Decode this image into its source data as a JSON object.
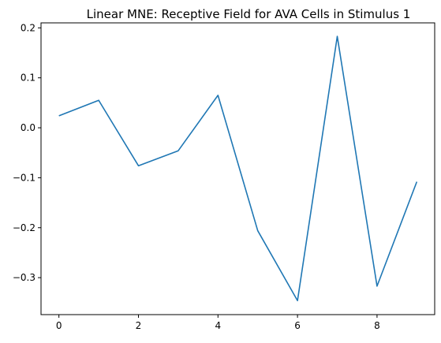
{
  "chart_data": {
    "type": "line",
    "title": "Linear MNE: Receptive Field for AVA Cells in Stimulus 1",
    "xlabel": "",
    "ylabel": "",
    "xlim": [
      -0.45,
      9.45
    ],
    "ylim": [
      -0.374,
      0.21
    ],
    "x_ticks": [
      0,
      2,
      4,
      6,
      8
    ],
    "y_ticks": [
      0.2,
      0.1,
      0.0,
      -0.1,
      -0.2,
      -0.3
    ],
    "x_tick_labels": [
      "0",
      "2",
      "4",
      "6",
      "8"
    ],
    "y_tick_labels": [
      "0.2",
      "0.1",
      "0.0",
      "−0.1",
      "−0.2",
      "−0.3"
    ],
    "grid": false,
    "legend": "none",
    "series": [
      {
        "color": "#1f77b4",
        "x": [
          0,
          1,
          2,
          3,
          4,
          5,
          6,
          7,
          8,
          9
        ],
        "values": [
          0.024,
          0.055,
          -0.076,
          -0.046,
          0.065,
          -0.206,
          -0.346,
          0.183,
          -0.317,
          -0.108
        ]
      }
    ]
  }
}
